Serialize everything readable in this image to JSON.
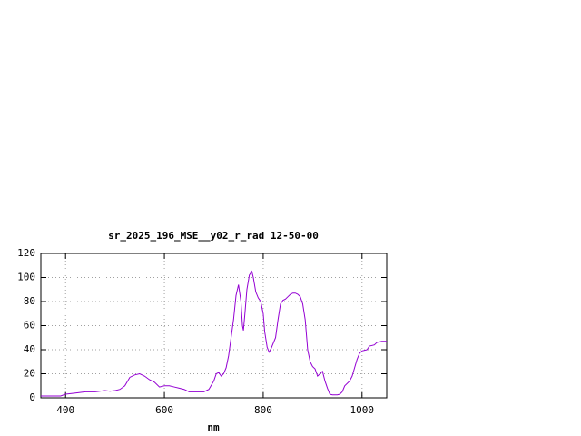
{
  "chart_data": {
    "type": "line",
    "title": "sr_2025_196_MSE__y02_r_rad 12-50-00",
    "x_label": "nm",
    "xlim": [
      350,
      1050
    ],
    "xticks": [
      400,
      600,
      800,
      1000
    ],
    "ylim": [
      0,
      120
    ],
    "yticks": [
      0,
      20,
      40,
      60,
      80,
      100,
      120
    ],
    "grid": true,
    "series": [
      {
        "color": "#9400d3",
        "x": [
          350,
          390,
          400,
          420,
          440,
          460,
          480,
          490,
          500,
          510,
          520,
          530,
          540,
          550,
          560,
          570,
          580,
          590,
          600,
          610,
          620,
          630,
          640,
          650,
          660,
          670,
          680,
          690,
          700,
          705,
          710,
          715,
          720,
          725,
          730,
          740,
          745,
          750,
          755,
          758,
          760,
          763,
          767,
          772,
          777,
          780,
          785,
          790,
          795,
          800,
          803,
          808,
          812,
          815,
          820,
          825,
          830,
          835,
          840,
          845,
          850,
          855,
          860,
          865,
          870,
          875,
          880,
          885,
          890,
          895,
          900,
          905,
          910,
          915,
          920,
          925,
          930,
          935,
          940,
          950,
          955,
          960,
          965,
          975,
          980,
          985,
          990,
          995,
          1000,
          1010,
          1015,
          1025,
          1030,
          1040,
          1050
        ],
        "values": [
          1.5,
          1.5,
          3,
          4,
          5,
          5,
          6,
          5.5,
          6,
          7,
          10,
          17,
          19,
          20,
          18,
          15,
          13,
          9,
          10,
          10,
          9,
          8,
          7,
          5,
          5,
          5,
          5,
          7,
          14,
          20,
          21,
          18,
          20,
          25,
          35,
          65,
          85,
          94,
          80,
          60,
          56,
          70,
          90,
          102,
          105,
          100,
          88,
          83,
          80,
          70,
          55,
          42,
          38,
          40,
          45,
          50,
          65,
          78,
          81,
          82,
          84,
          86,
          87,
          87,
          86,
          84,
          78,
          65,
          40,
          30,
          26,
          24,
          18,
          20,
          22,
          14,
          8,
          3,
          2.5,
          2.5,
          3,
          5,
          10,
          14,
          18,
          25,
          32,
          37,
          39,
          40,
          43,
          44,
          46,
          47,
          47
        ]
      }
    ]
  }
}
